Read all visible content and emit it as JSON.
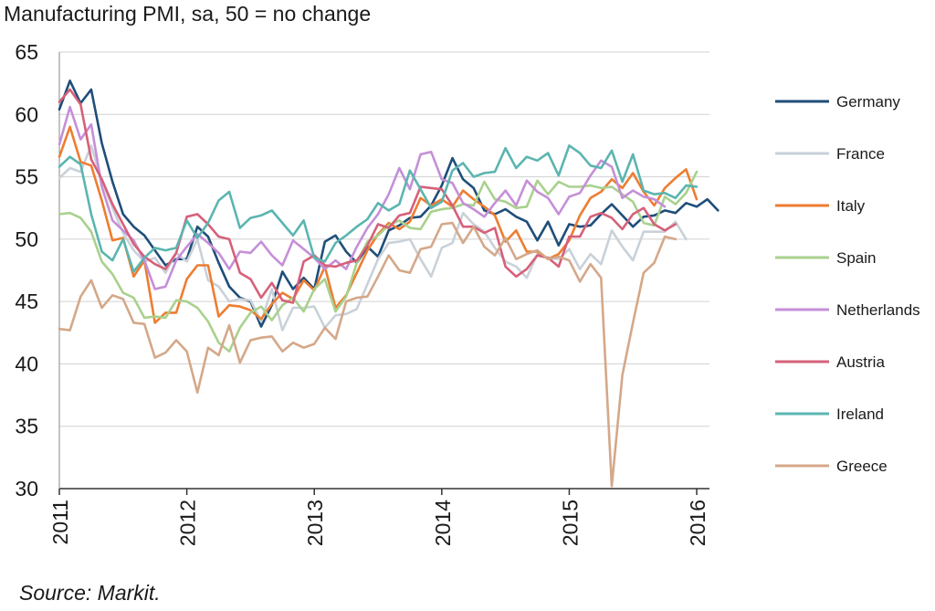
{
  "chart_data": {
    "type": "line",
    "title": "Manufacturing PMI, sa, 50 = no change",
    "source": "Source: Markit.",
    "ylim": [
      30,
      65
    ],
    "yticks": [
      "65",
      "60",
      "55",
      "50",
      "45",
      "40",
      "35",
      "30"
    ],
    "xlim": [
      2011,
      2016.1
    ],
    "xticks": [
      "2011",
      "2012",
      "2013",
      "2014",
      "2015",
      "2016"
    ],
    "grid": "horizontal",
    "legend_position": "right",
    "series": [
      {
        "name": "Germany",
        "color": "#1f4e79",
        "values": [
          60.4,
          62.7,
          60.9,
          62.0,
          57.7,
          54.6,
          52.0,
          51.0,
          50.3,
          49.1,
          47.9,
          48.4,
          48.4,
          51.0,
          50.2,
          48.1,
          46.2,
          45.3,
          45.0,
          43.0,
          44.7,
          47.4,
          46.0,
          46.9,
          46.0,
          49.8,
          50.3,
          49.0,
          48.1,
          49.4,
          48.6,
          50.7,
          51.1,
          51.7,
          51.8,
          52.7,
          54.3,
          56.5,
          54.8,
          54.1,
          52.3,
          52.0,
          52.4,
          51.8,
          51.4,
          49.9,
          51.4,
          49.5,
          51.2,
          51.0,
          51.1,
          52.0,
          52.8,
          51.9,
          51.0,
          51.8,
          51.9,
          52.3,
          52.1,
          52.9,
          52.6,
          53.2,
          52.3
        ]
      },
      {
        "name": "France",
        "color": "#c9d1d9",
        "values": [
          54.9,
          55.7,
          55.4,
          57.5,
          54.7,
          52.5,
          50.5,
          49.1,
          48.2,
          48.5,
          47.3,
          48.9,
          48.2,
          50.0,
          46.7,
          46.2,
          45.0,
          45.2,
          45.1,
          43.4,
          46.0,
          42.7,
          44.5,
          44.5,
          44.6,
          42.9,
          43.9,
          44.0,
          44.4,
          46.4,
          48.4,
          49.7,
          49.8,
          50.0,
          48.4,
          47.0,
          49.3,
          49.7,
          52.1,
          51.2,
          50.6,
          49.3,
          48.2,
          47.8,
          46.9,
          48.8,
          48.5,
          48.4,
          49.2,
          47.6,
          48.8,
          48.0,
          50.7,
          49.4,
          48.3,
          50.6,
          50.6,
          50.6,
          51.4,
          50.0
        ]
      },
      {
        "name": "Italy",
        "color": "#ed7d31",
        "values": [
          56.6,
          59.0,
          56.2,
          55.9,
          53.1,
          49.9,
          50.1,
          47.0,
          48.3,
          43.3,
          44.1,
          44.1,
          46.8,
          47.9,
          47.9,
          43.8,
          44.7,
          44.6,
          44.3,
          43.6,
          44.8,
          45.7,
          45.2,
          46.7,
          45.9,
          47.8,
          44.5,
          45.5,
          47.3,
          49.1,
          50.4,
          51.3,
          50.8,
          51.4,
          53.3,
          52.7,
          53.2,
          52.6,
          53.9,
          53.2,
          52.6,
          51.9,
          49.8,
          50.7,
          49.0,
          49.0,
          48.4,
          48.8,
          49.9,
          51.9,
          53.3,
          53.8,
          54.8,
          54.1,
          55.3,
          53.8,
          52.7,
          54.1,
          54.9,
          55.6,
          53.2
        ]
      },
      {
        "name": "Spain",
        "color": "#a9d18e",
        "values": [
          52.0,
          52.1,
          51.7,
          50.6,
          48.2,
          47.2,
          45.7,
          45.3,
          43.7,
          43.8,
          43.7,
          45.1,
          45.0,
          44.5,
          43.4,
          41.7,
          41.0,
          42.9,
          44.1,
          44.6,
          43.5,
          44.7,
          45.3,
          44.2,
          46.0,
          46.8,
          44.2,
          45.4,
          48.1,
          49.8,
          50.3,
          51.1,
          51.5,
          50.9,
          50.8,
          52.2,
          52.4,
          52.5,
          52.8,
          52.7,
          54.6,
          53.2,
          53.0,
          52.5,
          52.6,
          54.7,
          53.6,
          54.6,
          54.2,
          54.2,
          54.3,
          54.1,
          54.2,
          53.6,
          53.0,
          51.3,
          51.1,
          53.4,
          52.8,
          53.7,
          55.4
        ]
      },
      {
        "name": "Netherlands",
        "color": "#c58fd8",
        "values": [
          57.6,
          60.6,
          58.0,
          59.2,
          54.2,
          51.5,
          50.7,
          49.9,
          48.3,
          46.0,
          46.2,
          48.3,
          49.4,
          50.4,
          49.7,
          48.9,
          47.6,
          49.0,
          48.9,
          49.8,
          48.7,
          47.9,
          49.9,
          49.2,
          48.5,
          47.6,
          48.3,
          47.6,
          49.4,
          50.9,
          52.0,
          53.6,
          55.7,
          54.0,
          56.8,
          57.0,
          54.8,
          54.5,
          52.9,
          52.4,
          51.8,
          52.9,
          53.9,
          52.7,
          54.7,
          53.8,
          53.3,
          52.0,
          53.4,
          53.7,
          55.1,
          56.3,
          55.8,
          53.3,
          53.9,
          53.4,
          53.2,
          52.6
        ]
      },
      {
        "name": "Austria",
        "color": "#d6607a",
        "values": [
          61.0,
          62.0,
          60.8,
          56.4,
          54.8,
          52.8,
          51.2,
          49.6,
          48.6,
          48.0,
          47.6,
          48.9,
          51.8,
          52.0,
          51.2,
          50.2,
          50.0,
          47.3,
          46.8,
          45.3,
          46.5,
          45.1,
          44.9,
          48.2,
          48.7,
          47.9,
          47.8,
          48.1,
          48.3,
          49.5,
          51.2,
          50.9,
          51.9,
          52.1,
          54.2,
          54.1,
          54.0,
          52.7,
          51.0,
          51.0,
          50.5,
          50.9,
          47.8,
          47.0,
          47.6,
          48.7,
          48.5,
          47.8,
          50.2,
          50.2,
          51.8,
          52.1,
          51.7,
          50.8,
          52.0,
          52.5,
          51.2,
          50.7,
          51.2
        ]
      },
      {
        "name": "Ireland",
        "color": "#5bb5b0",
        "values": [
          55.8,
          56.6,
          56.0,
          52.0,
          49.0,
          48.3,
          50.0,
          47.4,
          48.5,
          49.3,
          49.1,
          49.3,
          51.5,
          50.1,
          51.3,
          53.1,
          53.8,
          50.9,
          51.7,
          51.9,
          52.3,
          51.3,
          50.3,
          51.5,
          48.5,
          48.2,
          49.7,
          50.3,
          51.0,
          51.6,
          52.9,
          52.3,
          52.8,
          55.5,
          54.0,
          52.5,
          53.0,
          55.5,
          56.1,
          55.0,
          55.3,
          55.4,
          57.3,
          55.7,
          56.6,
          56.3,
          56.9,
          55.1,
          57.5,
          56.9,
          55.9,
          55.7,
          57.1,
          54.6,
          56.8,
          53.9,
          53.6,
          53.7,
          53.3,
          54.3,
          54.2
        ]
      },
      {
        "name": "Greece",
        "color": "#d4a889",
        "values": [
          42.8,
          42.7,
          45.4,
          46.7,
          44.5,
          45.5,
          45.2,
          43.3,
          43.2,
          40.5,
          40.9,
          41.9,
          41.0,
          37.7,
          41.3,
          40.7,
          43.1,
          40.1,
          41.9,
          42.1,
          42.2,
          41.0,
          41.7,
          41.3,
          41.6,
          42.9,
          42.0,
          45.0,
          45.3,
          45.4,
          47.0,
          48.7,
          47.5,
          47.3,
          49.2,
          49.4,
          51.2,
          51.3,
          49.7,
          51.0,
          49.4,
          48.7,
          50.1,
          48.4,
          48.8,
          49.1,
          48.4,
          48.6,
          48.3,
          46.6,
          48.0,
          46.9,
          30.2,
          39.1,
          43.3,
          47.3,
          48.1,
          50.2,
          50.0
        ]
      }
    ]
  }
}
